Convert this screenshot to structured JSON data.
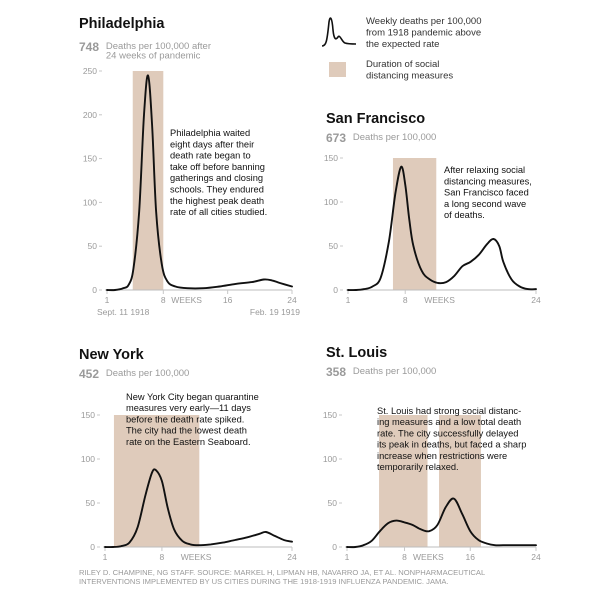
{
  "legend": {
    "line_label": [
      "Weekly deaths per 100,000",
      "from 1918 pandemic above",
      "the expected rate"
    ],
    "shade_label": [
      "Duration of social",
      "distancing measures"
    ]
  },
  "colors": {
    "line": "#111111",
    "shade": "#dfcbbb",
    "axis": "#c8c8c8",
    "muted": "#9a9a9a"
  },
  "credit": [
    "RILEY D. CHAMPINE, NG STAFF. SOURCE: MARKEL H, LIPMAN HB, NAVARRO JA, ET AL. NONPHARMACEUTICAL",
    "INTERVENTIONS IMPLEMENTED BY US CITIES DURING THE 1918-1919 INFLUENZA PANDEMIC. JAMA."
  ],
  "chart_data": [
    {
      "type": "line",
      "title": "Philadelphia",
      "total": "748",
      "total_label": [
        "Deaths per 100,000 after",
        "24 weeks of pandemic"
      ],
      "ylim": [
        0,
        250
      ],
      "yticks": [
        0,
        50,
        100,
        150,
        200,
        250
      ],
      "xlim": [
        1,
        24
      ],
      "xtick_labels": [
        "1",
        "8",
        "WEEKS",
        "16",
        "24"
      ],
      "date_labels": [
        "Sept. 11 1918",
        "Feb. 19 1919"
      ],
      "distancing": [
        [
          4.2,
          8.0
        ]
      ],
      "x": [
        1,
        2,
        3,
        3.7,
        4.3,
        5,
        5.6,
        6.1,
        6.6,
        7.1,
        7.8,
        8.5,
        9.5,
        11,
        13,
        15,
        17,
        19,
        20.5,
        21.5,
        22.5,
        24
      ],
      "y": [
        0,
        0,
        2,
        6,
        25,
        90,
        200,
        245,
        190,
        90,
        30,
        10,
        4,
        2,
        2,
        4,
        7,
        9,
        12,
        11,
        8,
        4
      ],
      "annotation": [
        "Philadelphia waited",
        "eight days after their",
        "death rate began to",
        "take off before banning",
        "gatherings and closing",
        "schools. They endured",
        "the highest peak death",
        "rate of all cities studied."
      ]
    },
    {
      "type": "line",
      "title": "San Francisco",
      "total": "673",
      "total_label": [
        "Deaths per 100,000"
      ],
      "ylim": [
        0,
        150
      ],
      "yticks": [
        0,
        50,
        100,
        150
      ],
      "xlim": [
        1,
        24
      ],
      "xtick_labels": [
        "1",
        "8",
        "WEEKS",
        "24"
      ],
      "distancing": [
        [
          6.5,
          11.8
        ]
      ],
      "x": [
        1,
        2,
        3,
        4,
        5,
        6,
        6.8,
        7.5,
        8,
        8.5,
        9,
        10,
        11,
        12,
        13,
        14,
        15,
        16,
        17,
        18,
        18.8,
        19.5,
        20,
        21,
        22,
        23,
        24
      ],
      "y": [
        0,
        0,
        1,
        4,
        14,
        55,
        110,
        140,
        120,
        80,
        50,
        22,
        12,
        8,
        9,
        16,
        27,
        32,
        40,
        52,
        58,
        50,
        32,
        12,
        4,
        1,
        1
      ],
      "annotation": [
        "After relaxing social",
        "distancing measures,",
        "San Francisco faced",
        "a long second wave",
        "of deaths."
      ]
    },
    {
      "type": "line",
      "title": "New York",
      "total": "452",
      "total_label": [
        "Deaths per 100,000"
      ],
      "ylim": [
        0,
        150
      ],
      "yticks": [
        0,
        50,
        100,
        150
      ],
      "xlim": [
        1,
        24
      ],
      "xtick_labels": [
        "1",
        "8",
        "WEEKS",
        "24"
      ],
      "distancing": [
        [
          2.1,
          12.6
        ]
      ],
      "x": [
        1,
        2,
        3,
        4,
        5,
        6,
        6.8,
        7.3,
        8,
        8.7,
        9.5,
        10.5,
        11.5,
        12.5,
        14,
        15.5,
        17,
        18.5,
        20,
        20.8,
        21.8,
        23,
        24
      ],
      "y": [
        0,
        0,
        1,
        5,
        22,
        60,
        85,
        87,
        75,
        45,
        20,
        7,
        3,
        2,
        3,
        5,
        8,
        11,
        15,
        17,
        13,
        8,
        6
      ],
      "annotation": [
        "New York City began quarantine",
        "measures very early—11 days",
        "before the death rate spiked.",
        "The city had the lowest death",
        "rate on the Eastern Seaboard."
      ]
    },
    {
      "type": "line",
      "title": "St. Louis",
      "total": "358",
      "total_label": [
        "Deaths per 100,000"
      ],
      "ylim": [
        0,
        150
      ],
      "yticks": [
        0,
        50,
        100,
        150
      ],
      "xlim": [
        1,
        24
      ],
      "xtick_labels": [
        "1",
        "8",
        "WEEKS",
        "16",
        "24"
      ],
      "distancing": [
        [
          4.9,
          10.8
        ],
        [
          12.2,
          17.3
        ]
      ],
      "x": [
        1,
        2,
        3,
        4,
        5,
        6,
        7,
        8,
        9,
        10,
        11,
        12,
        13,
        14,
        15,
        16,
        17,
        18,
        19,
        20,
        22,
        24
      ],
      "y": [
        0,
        0,
        2,
        7,
        18,
        27,
        30,
        28,
        25,
        20,
        18,
        25,
        45,
        55,
        38,
        18,
        8,
        4,
        2,
        2,
        2,
        2
      ],
      "annotation": [
        "St. Louis had strong social distanc-",
        "ing measures and a low total death",
        "rate. The city successfully delayed",
        "its peak in deaths, but faced a sharp",
        "increase when restrictions were",
        "temporarily relaxed."
      ]
    }
  ]
}
